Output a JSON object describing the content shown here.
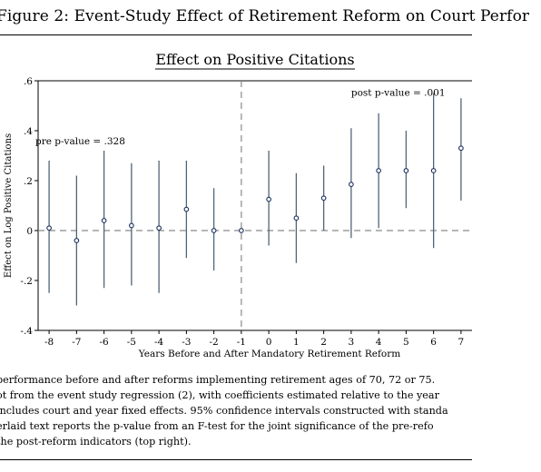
{
  "figure": {
    "title": "Figure 2: Event-Study Effect of Retirement Reform on Court Perfor",
    "caption_lines": [
      "performance before and after reforms implementing retirement ages of 70, 72 or 75.",
      "ot from the event study regression (2), with coefficients estimated relative to the year",
      "includes court and year fixed effects. 95% confidence intervals constructed with standa",
      "erlaid text reports the p-value from an F-test for the joint significance of the pre-refo",
      "the post-reform indicators (top right)."
    ]
  },
  "chart_data": {
    "type": "scatter",
    "title": "Effect on Positive Citations",
    "xlabel": "Years Before and After Mandatory Retirement Reform",
    "ylabel": "Effect on Log Positive Citations",
    "xlim": [
      -8.4,
      7.4
    ],
    "ylim": [
      -0.4,
      0.6
    ],
    "x_ticks": [
      -8,
      -7,
      -6,
      -5,
      -4,
      -3,
      -2,
      -1,
      0,
      1,
      2,
      3,
      4,
      5,
      6,
      7
    ],
    "y_ticks": [
      -0.4,
      -0.2,
      0,
      0.2,
      0.4,
      0.6
    ],
    "y_tick_labels": [
      "-.4",
      "-.2",
      "0",
      ".2",
      ".4",
      ".6"
    ],
    "reference_line_y": 0,
    "reference_line_x": -1,
    "points": [
      {
        "x": -8,
        "y": 0.01,
        "lo": -0.25,
        "hi": 0.28
      },
      {
        "x": -7,
        "y": -0.04,
        "lo": -0.3,
        "hi": 0.22
      },
      {
        "x": -6,
        "y": 0.04,
        "lo": -0.23,
        "hi": 0.32
      },
      {
        "x": -5,
        "y": 0.02,
        "lo": -0.22,
        "hi": 0.27
      },
      {
        "x": -4,
        "y": 0.01,
        "lo": -0.25,
        "hi": 0.28
      },
      {
        "x": -3,
        "y": 0.085,
        "lo": -0.11,
        "hi": 0.28
      },
      {
        "x": -2,
        "y": 0.0,
        "lo": -0.16,
        "hi": 0.17
      },
      {
        "x": -1,
        "y": 0.0,
        "lo": 0.0,
        "hi": 0.0
      },
      {
        "x": 0,
        "y": 0.125,
        "lo": -0.06,
        "hi": 0.32
      },
      {
        "x": 1,
        "y": 0.05,
        "lo": -0.13,
        "hi": 0.23
      },
      {
        "x": 2,
        "y": 0.13,
        "lo": 0.0,
        "hi": 0.26
      },
      {
        "x": 3,
        "y": 0.185,
        "lo": -0.03,
        "hi": 0.41
      },
      {
        "x": 4,
        "y": 0.24,
        "lo": 0.01,
        "hi": 0.47
      },
      {
        "x": 5,
        "y": 0.24,
        "lo": 0.09,
        "hi": 0.4
      },
      {
        "x": 6,
        "y": 0.24,
        "lo": -0.07,
        "hi": 0.55
      },
      {
        "x": 7,
        "y": 0.33,
        "lo": 0.12,
        "hi": 0.53
      }
    ],
    "annotations": [
      {
        "text": "pre p-value = .328",
        "x": -8.5,
        "y": 0.345
      },
      {
        "text": "post p-value = .001",
        "x": 3.0,
        "y": 0.54
      }
    ],
    "grid": false,
    "colors": {
      "ci": "#4f6577",
      "marker": "#1b2f5e",
      "reference": "#8a8a8a"
    }
  }
}
